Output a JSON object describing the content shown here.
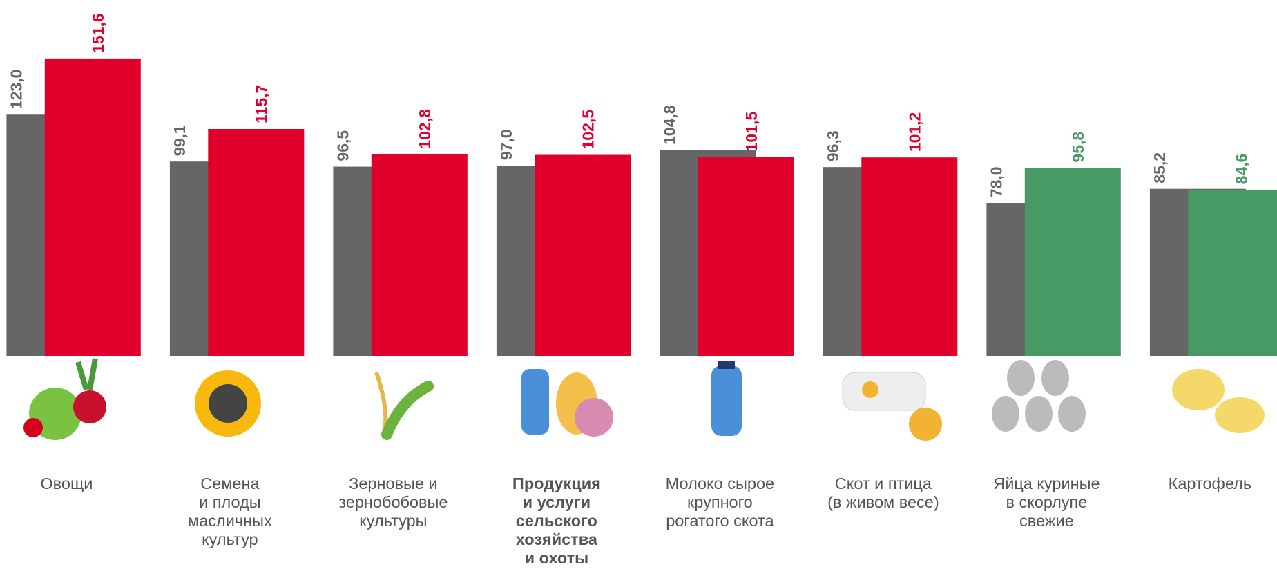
{
  "chart_data": {
    "type": "bar",
    "categories": [
      "Овощи",
      "Семена\nи плоды\nмасличных\nкультур",
      "Зерновые и\nзернобобовые\nкультуры",
      "Продукция\nи услуги\nсельского\nхозяйства\nи охоты",
      "Молоко сырое\nкрупного\nрогатого скота",
      "Скот и птица\n(в живом весе)",
      "Яйца куриные\nв скорлупе\nсвежие",
      "Картофель"
    ],
    "bold_category": 3,
    "ylim": [
      0,
      160
    ],
    "series": [
      {
        "color": "#666666",
        "values": [
          123.0,
          99.1,
          96.5,
          97.0,
          104.8,
          96.3,
          78.0,
          85.2
        ],
        "value_labels": [
          "123,0",
          "99,1",
          "96,5",
          "97,0",
          "104,8",
          "96,3",
          "78,0",
          "85,2"
        ]
      },
      {
        "colors": [
          "#e0002b",
          "#e0002b",
          "#e0002b",
          "#e0002b",
          "#e0002b",
          "#e0002b",
          "#479a63",
          "#479a63"
        ],
        "values": [
          151.6,
          115.7,
          102.8,
          102.5,
          101.5,
          101.2,
          95.8,
          84.6
        ],
        "value_labels": [
          "151,6",
          "115,7",
          "102,8",
          "102,5",
          "101,5",
          "101,2",
          "95,8",
          "84,6"
        ]
      }
    ]
  }
}
